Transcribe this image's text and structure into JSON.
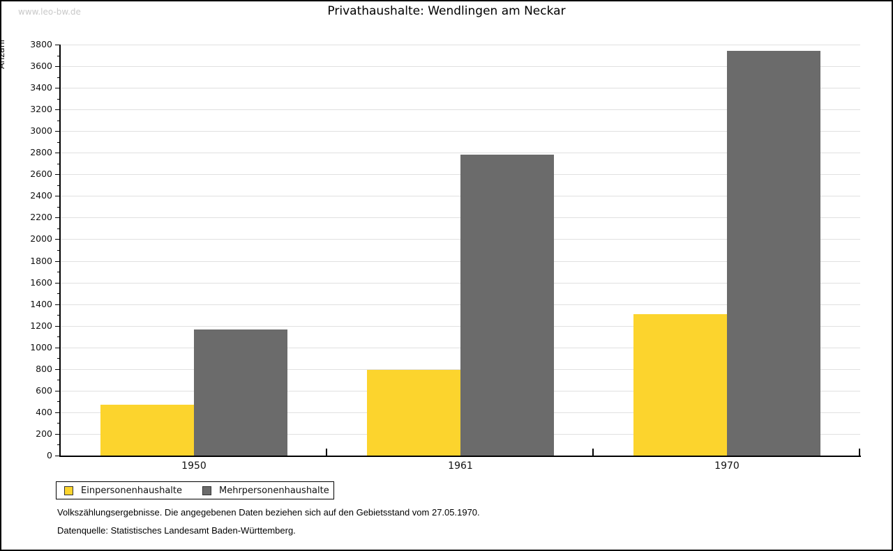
{
  "watermark": "www.leo-bw.de",
  "title": "Privathaushalte: Wendlingen am Neckar",
  "chart_data": {
    "type": "bar",
    "title": "Privathaushalte: Wendlingen am Neckar",
    "xlabel": "",
    "ylabel": "Anzahl",
    "categories": [
      "1950",
      "1961",
      "1970"
    ],
    "series": [
      {
        "name": "Einpersonenhaushalte",
        "color": "#fcd42d",
        "values": [
          470,
          795,
          1305
        ]
      },
      {
        "name": "Mehrpersonenhaushalte",
        "color": "#6b6b6b",
        "values": [
          1165,
          2780,
          3745
        ]
      }
    ],
    "ylim": [
      0,
      3800
    ],
    "ytick_step": 200,
    "minor_tick_step": 100,
    "grid": true,
    "gridline_color": "#e0e0e0",
    "axis_color": "#000000",
    "legend_position": "bottom-left"
  },
  "footer": {
    "line1": "Volkszählungsergebnisse. Die angegebenen Daten beziehen sich auf den Gebietsstand vom 27.05.1970.",
    "line2": "Datenquelle: Statistisches Landesamt Baden-Württemberg."
  }
}
